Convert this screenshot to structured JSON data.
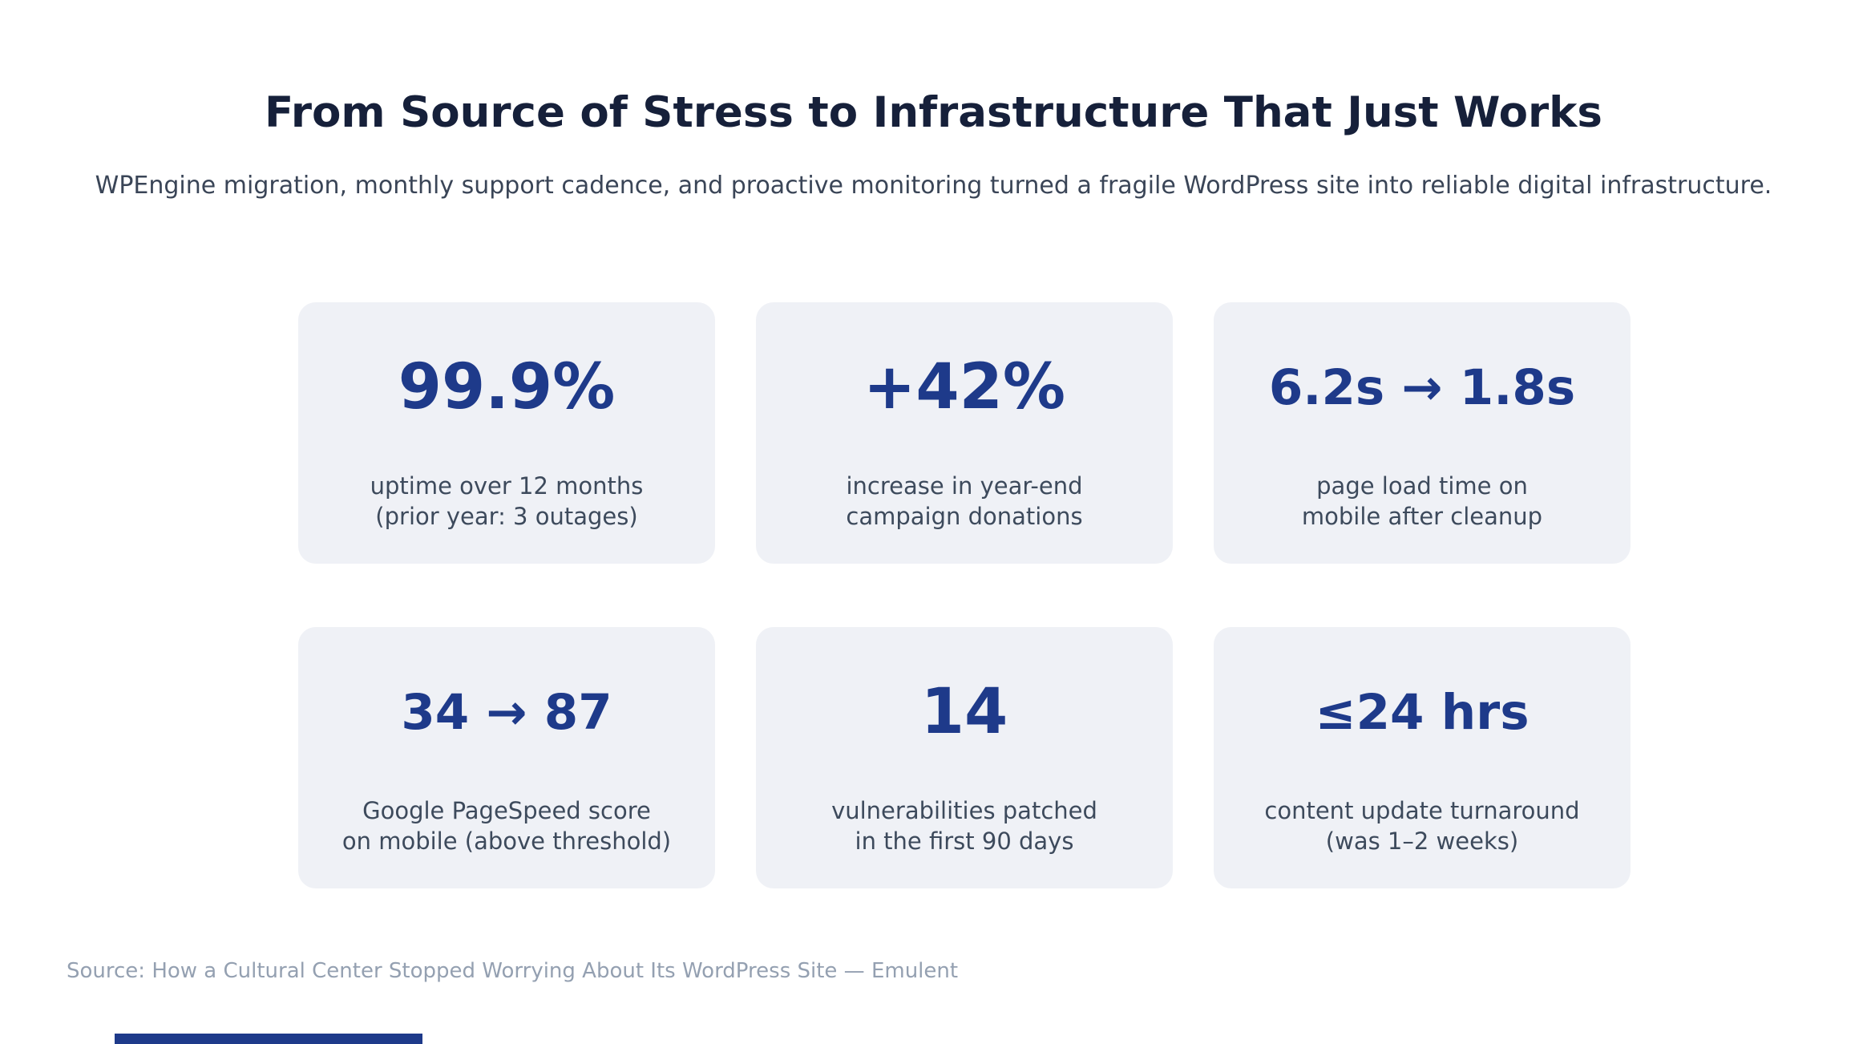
{
  "header": {
    "title": "From Source of Stress to Infrastructure That Just Works",
    "subtitle": "WPEngine migration, monthly support cadence, and proactive monitoring turned a fragile WordPress site into reliable digital infrastructure."
  },
  "stats": [
    {
      "value": "99.9%",
      "lines": [
        "uptime over 12 months",
        "(prior year: 3 outages)"
      ]
    },
    {
      "value": "+42%",
      "lines": [
        "increase in year-end",
        "campaign donations"
      ]
    },
    {
      "value": "6.2s → 1.8s",
      "lines": [
        "page load time on",
        "mobile after cleanup"
      ]
    },
    {
      "value": "34 → 87",
      "lines": [
        "Google PageSpeed score",
        "on mobile (above threshold)"
      ]
    },
    {
      "value": "14",
      "lines": [
        "vulnerabilities patched",
        "in the first 90 days"
      ]
    },
    {
      "value": "≤24 hrs",
      "lines": [
        "content update turnaround",
        "(was 1–2 weeks)"
      ]
    }
  ],
  "footer": {
    "source": "Source: How a Cultural Center Stopped Worrying About Its WordPress Site — Emulent"
  },
  "colors": {
    "accent": "#1e3a8a",
    "card_background": "#eff1f6",
    "title_text": "#16203a",
    "label_text": "#3d4a5c",
    "source_text": "#94a0b1"
  },
  "chart_data": {
    "type": "table",
    "title": "From Source of Stress to Infrastructure That Just Works",
    "subtitle": "WPEngine migration, monthly support cadence, and proactive monitoring turned a fragile WordPress site into reliable digital infrastructure.",
    "legend_position": "none",
    "items": [
      {
        "value": "99.9%",
        "label": "uptime over 12 months (prior year: 3 outages)"
      },
      {
        "value": "+42%",
        "label": "increase in year-end campaign donations"
      },
      {
        "value": "6.2s → 1.8s",
        "label": "page load time on mobile after cleanup"
      },
      {
        "value": "34 → 87",
        "label": "Google PageSpeed score on mobile (above threshold)"
      },
      {
        "value": "14",
        "label": "vulnerabilities patched in the first 90 days"
      },
      {
        "value": "≤24 hrs",
        "label": "content update turnaround (was 1–2 weeks)"
      }
    ],
    "source": "Source: How a Cultural Center Stopped Worrying About Its WordPress Site — Emulent"
  }
}
